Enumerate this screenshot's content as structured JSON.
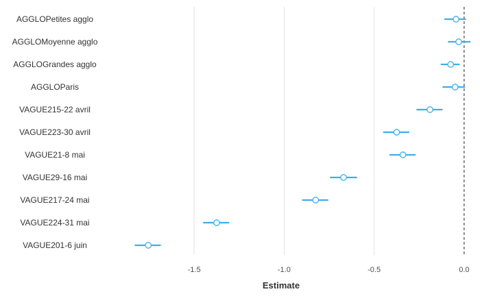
{
  "chart_data": {
    "type": "scatter",
    "title": "",
    "xlabel": "Estimate",
    "ylabel": "",
    "xlim": [
      -1.95,
      0.05
    ],
    "xticks": [
      -1.5,
      -1.0,
      -0.5,
      0.0
    ],
    "xtick_labels": [
      "-1.5",
      "-1.0",
      "-0.5",
      "0.0"
    ],
    "grid": "vertical",
    "reference_line": 0.0,
    "point_color": "#3daee9",
    "categories": [
      "AGGLOPetites agglo",
      "AGGLOMoyenne agglo",
      "AGGLOGrandes agglo",
      "AGGLOParis",
      "VAGUE215-22 avril",
      "VAGUE223-30 avril",
      "VAGUE21-8 mai",
      "VAGUE29-16 mai",
      "VAGUE217-24 mai",
      "VAGUE224-31 mai",
      "VAGUE201-6 juin"
    ],
    "estimates": [
      -0.045,
      -0.03,
      -0.075,
      -0.05,
      -0.19,
      -0.375,
      -0.34,
      -0.67,
      -0.825,
      -1.375,
      -1.755
    ],
    "ci_low": [
      -0.11,
      -0.09,
      -0.13,
      -0.12,
      -0.265,
      -0.45,
      -0.415,
      -0.745,
      -0.9,
      -1.45,
      -1.83
    ],
    "ci_high": [
      0.01,
      0.035,
      -0.025,
      0.005,
      -0.12,
      -0.305,
      -0.27,
      -0.595,
      -0.755,
      -1.305,
      -1.685
    ]
  }
}
